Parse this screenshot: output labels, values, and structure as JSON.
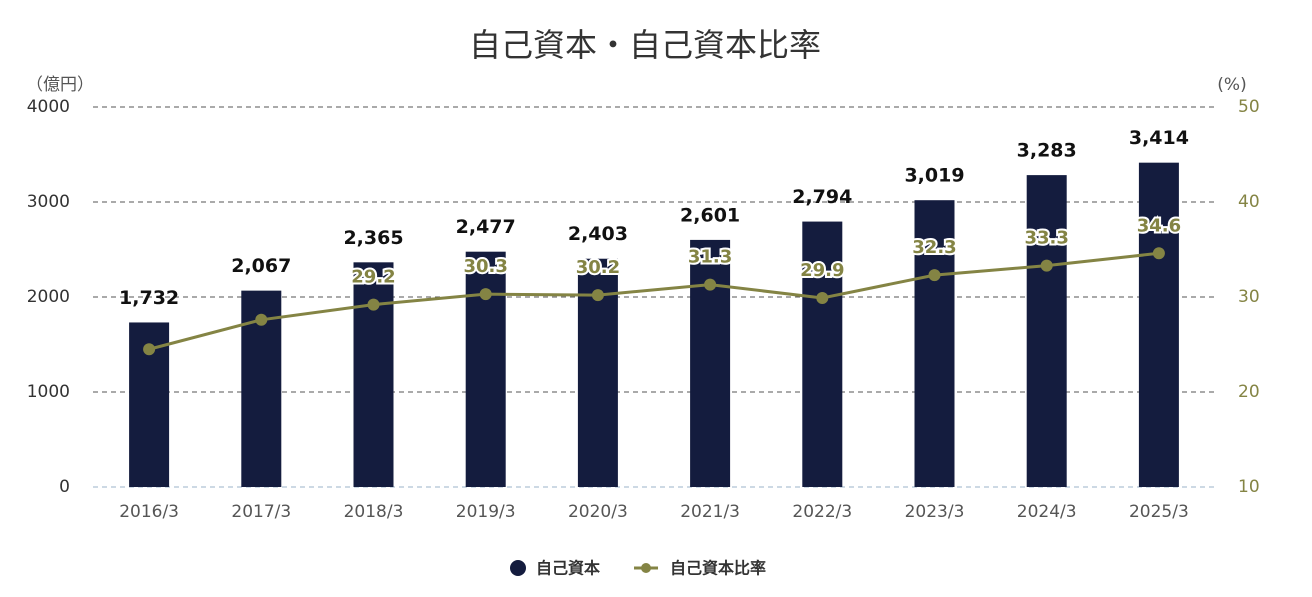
{
  "chart_data": {
    "type": "bar-line",
    "title": "自己資本・自己資本比率",
    "y_label": "（億円）",
    "y2_label": "(%)",
    "categories": [
      "2016/3",
      "2017/3",
      "2018/3",
      "2019/3",
      "2020/3",
      "2021/3",
      "2022/3",
      "2023/3",
      "2024/3",
      "2025/3"
    ],
    "series": [
      {
        "name": "自己資本",
        "type": "bar",
        "color": "#141c3e",
        "values": [
          1732,
          2067,
          2365,
          2477,
          2403,
          2601,
          2794,
          3019,
          3283,
          3414
        ],
        "value_labels": [
          "1,732",
          "2,067",
          "2,365",
          "2,477",
          "2,403",
          "2,601",
          "2,794",
          "3,019",
          "3,283",
          "3,414"
        ]
      },
      {
        "name": "自己資本比率",
        "type": "line",
        "color": "#848444",
        "axis": "y2",
        "values": [
          24.5,
          27.6,
          29.2,
          30.3,
          30.2,
          31.3,
          29.9,
          32.3,
          33.3,
          34.6
        ],
        "value_labels": [
          null,
          null,
          "29.2",
          "30.3",
          "30.2",
          "31.3",
          "29.9",
          "32.3",
          "33.3",
          "34.6"
        ]
      }
    ],
    "ylim": [
      0,
      4000
    ],
    "yticks": [
      0,
      1000,
      2000,
      3000,
      4000
    ],
    "y2lim": [
      10,
      50
    ],
    "y2ticks": [
      10,
      20,
      30,
      40,
      50
    ],
    "grid": true,
    "legend": "bottom"
  }
}
